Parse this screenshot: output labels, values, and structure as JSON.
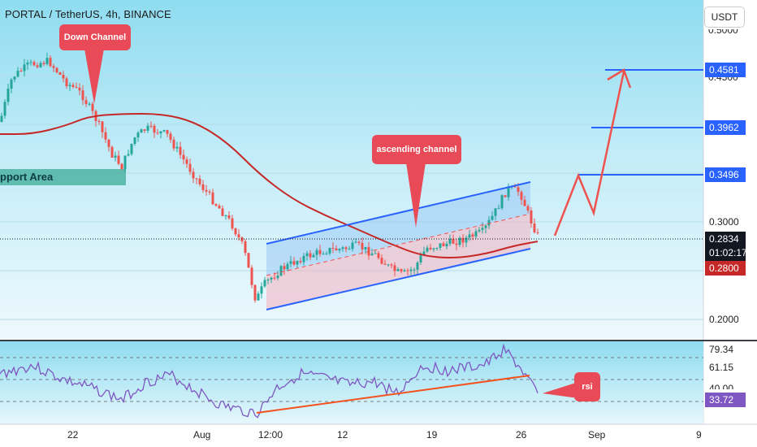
{
  "header": {
    "title": "PORTAL / TetherUS, 4h, BINANCE",
    "currency_label": "USDT"
  },
  "annotations": {
    "down_channel": "Down Channel",
    "ascending_channel": "ascending channel",
    "support_area": "pport Area",
    "rsi": "rsi"
  },
  "price_axis": {
    "ticks": [
      "0.3000",
      "0.2000"
    ],
    "partial_ticks": [
      "0.5000",
      "0.4500"
    ],
    "targets": [
      "0.4581",
      "0.3962",
      "0.3496"
    ],
    "current_price": "0.2834",
    "countdown": "01:02:17",
    "ma_value": "0.2800"
  },
  "rsi_axis": {
    "levels": [
      "79.34",
      "61.15",
      "40.00"
    ],
    "current": "33.72"
  },
  "time_axis": [
    "22",
    "Aug",
    "12:00",
    "12",
    "19",
    "26",
    "Sep",
    "9"
  ],
  "colors": {
    "background": "#d4f0ff",
    "target_line": "#2962ff",
    "channel_line": "#2962ff",
    "candle_up": "#26a69a",
    "candle_down": "#ef5350",
    "moving_average": "#c62828",
    "forecast_arrow": "#ef5350",
    "callout": "#e94a57",
    "rsi_line": "#7e57c2",
    "rsi_trendline": "#f4511e",
    "current_price_tag": "#131722",
    "ma_tag": "#c62828",
    "rsi_tag": "#7e57c2"
  }
}
